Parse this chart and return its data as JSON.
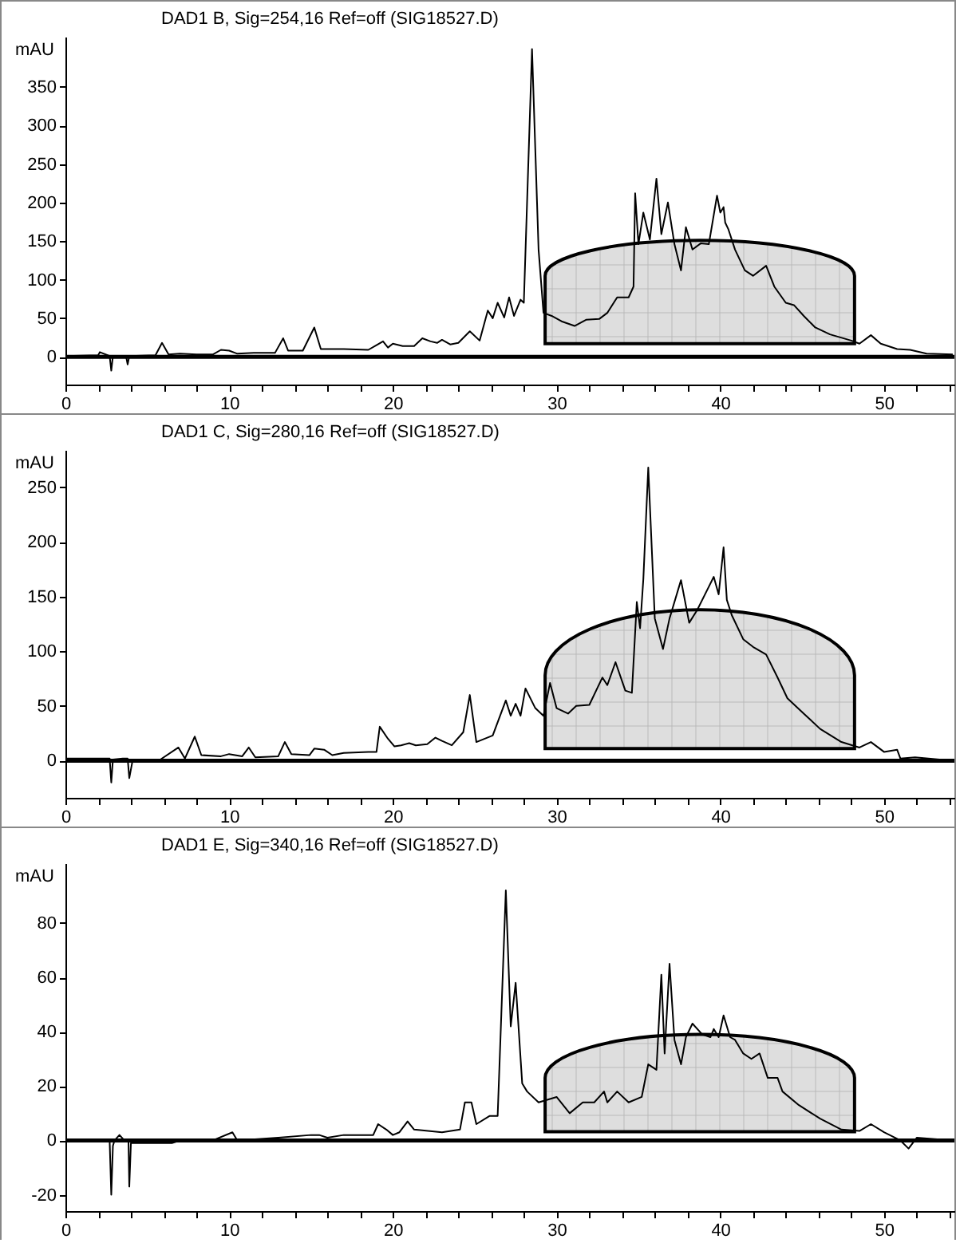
{
  "chart_data": [
    {
      "type": "line",
      "title": "DAD1 B, Sig=254,16 Ref=off (SIG18527.D)",
      "ylabel": "mAU",
      "color": "#000000",
      "line_style": "solid",
      "marker": "none",
      "grid": false,
      "x": [
        0,
        2,
        2.1,
        2.7,
        2.8,
        2.9,
        3.7,
        3.8,
        3.9,
        5.5,
        5.9,
        6.3,
        7,
        8,
        9,
        9.5,
        10,
        10.5,
        11.5,
        12.8,
        13.3,
        13.6,
        14.5,
        15.2,
        15.6,
        17,
        18.5,
        19,
        19.4,
        19.7,
        20,
        20.6,
        21.3,
        21.8,
        22.3,
        22.7,
        23,
        23.5,
        24,
        24.7,
        25.3,
        25.8,
        26.1,
        26.4,
        26.8,
        27.1,
        27.4,
        27.8,
        28.0,
        28.5,
        28.9,
        29.2,
        29.7,
        30.3,
        31.1,
        31.8,
        32.6,
        33.1,
        33.7,
        34.4,
        34.7,
        34.8,
        35.0,
        35.3,
        35.7,
        36.1,
        36.4,
        36.8,
        37.2,
        37.6,
        37.9,
        38.3,
        38.8,
        39.3,
        39.8,
        40.0,
        40.2,
        40.3,
        40.5,
        40.9,
        41.5,
        42.0,
        42.8,
        43.3,
        44.0,
        44.5,
        45.1,
        45.8,
        46.7,
        48.0,
        48.5,
        49.2,
        49.8,
        50.8,
        51.6,
        52.6,
        54.2
      ],
      "values": [
        1,
        2,
        6,
        1,
        -18,
        1,
        1,
        -10,
        1,
        2,
        18,
        3,
        4,
        3,
        3,
        9,
        8,
        4,
        5,
        5,
        24,
        8,
        8,
        38,
        10,
        10,
        9,
        15,
        20,
        12,
        17,
        14,
        14,
        24,
        20,
        18,
        22,
        16,
        18,
        33,
        21,
        60,
        50,
        70,
        51,
        77,
        53,
        74,
        70,
        399,
        139,
        57,
        53,
        46,
        40,
        48,
        49,
        57,
        77,
        77,
        91,
        212,
        146,
        187,
        152,
        231,
        159,
        200,
        146,
        112,
        168,
        139,
        147,
        146,
        209,
        187,
        194,
        174,
        165,
        139,
        112,
        105,
        118,
        91,
        70,
        67,
        53,
        38,
        29,
        21,
        17,
        28,
        17,
        10,
        9,
        4,
        3
      ],
      "xlim": [
        0,
        54.3
      ],
      "xticks": [
        0,
        {
          "value": 2,
          "label": null
        },
        {
          "value": 4,
          "label": null
        },
        {
          "value": 6,
          "label": null
        },
        {
          "value": 8,
          "label": null
        },
        10,
        {
          "value": 12,
          "label": null
        },
        {
          "value": 14,
          "label": null
        },
        {
          "value": 16,
          "label": null
        },
        {
          "value": 18,
          "label": null
        },
        20,
        {
          "value": 22,
          "label": null
        },
        {
          "value": 24,
          "label": null
        },
        {
          "value": 26,
          "label": null
        },
        {
          "value": 28,
          "label": null
        },
        30,
        {
          "value": 32,
          "label": null
        },
        {
          "value": 34,
          "label": null
        },
        {
          "value": 36,
          "label": null
        },
        {
          "value": 38,
          "label": null
        },
        40,
        {
          "value": 42,
          "label": null
        },
        {
          "value": 44,
          "label": null
        },
        {
          "value": 46,
          "label": null
        },
        {
          "value": 48,
          "label": null
        },
        50,
        {
          "value": 52,
          "label": null
        },
        {
          "value": 54,
          "label": null
        }
      ],
      "ylim": [
        -36,
        415
      ],
      "yticks": [
        0,
        50,
        100,
        150,
        200,
        250,
        300,
        350
      ],
      "ref_lines": [
        {
          "axis": "y",
          "value": 0,
          "label": null,
          "color": "#000000"
        }
      ]
    },
    {
      "type": "line",
      "title": "DAD1 C, Sig=280,16 Ref=off (SIG18527.D)",
      "ylabel": "mAU",
      "color": "#000000",
      "line_style": "solid",
      "marker": "none",
      "grid": false,
      "x": [
        0,
        2.7,
        2.8,
        2.9,
        3.5,
        3.8,
        3.9,
        4.1,
        5.8,
        6.9,
        7.3,
        7.9,
        8.3,
        9.5,
        10,
        10.8,
        11.2,
        11.6,
        13,
        13.4,
        13.8,
        14.9,
        15.2,
        15.8,
        16.3,
        17,
        18.5,
        19,
        19.2,
        19.7,
        20.1,
        20.5,
        21,
        21.4,
        22.1,
        22.6,
        23,
        23.6,
        24.3,
        24.7,
        25.1,
        26.1,
        26.9,
        27.2,
        27.5,
        27.8,
        28.1,
        28.7,
        29.2,
        29.6,
        30.0,
        30.7,
        31.2,
        32.0,
        32.8,
        33.1,
        33.6,
        34.2,
        34.6,
        34.9,
        35.1,
        35.3,
        35.6,
        36.0,
        36.5,
        36.9,
        37.6,
        38.1,
        38.6,
        39.3,
        39.6,
        39.9,
        40.2,
        40.4,
        40.7,
        41.4,
        42.0,
        42.8,
        43.5,
        44.1,
        45.1,
        46.1,
        47.4,
        48.5,
        49.2,
        50.0,
        50.8,
        51.0,
        51.9,
        54.2
      ],
      "values": [
        2,
        2,
        -20,
        1,
        2,
        2,
        -16,
        0,
        1,
        12,
        2,
        22,
        5,
        4,
        6,
        4,
        12,
        3,
        4,
        17,
        6,
        5,
        11,
        10,
        5,
        7,
        8,
        8,
        31,
        20,
        13,
        14,
        16,
        14,
        15,
        21,
        18,
        14,
        26,
        60,
        17,
        23,
        55,
        41,
        52,
        41,
        66,
        48,
        41,
        71,
        48,
        43,
        50,
        51,
        76,
        69,
        90,
        64,
        62,
        145,
        121,
        166,
        268,
        130,
        102,
        130,
        165,
        126,
        138,
        159,
        168,
        152,
        195,
        147,
        133,
        111,
        104,
        97,
        76,
        57,
        43,
        29,
        17,
        12,
        17,
        8,
        10,
        2,
        3,
        0
      ],
      "xlim": [
        0,
        54.3
      ],
      "xticks": [
        0,
        {
          "value": 2,
          "label": null
        },
        {
          "value": 4,
          "label": null
        },
        {
          "value": 6,
          "label": null
        },
        {
          "value": 8,
          "label": null
        },
        10,
        {
          "value": 12,
          "label": null
        },
        {
          "value": 14,
          "label": null
        },
        {
          "value": 16,
          "label": null
        },
        {
          "value": 18,
          "label": null
        },
        20,
        {
          "value": 22,
          "label": null
        },
        {
          "value": 24,
          "label": null
        },
        {
          "value": 26,
          "label": null
        },
        {
          "value": 28,
          "label": null
        },
        30,
        {
          "value": 32,
          "label": null
        },
        {
          "value": 34,
          "label": null
        },
        {
          "value": 36,
          "label": null
        },
        {
          "value": 38,
          "label": null
        },
        40,
        {
          "value": 42,
          "label": null
        },
        {
          "value": 44,
          "label": null
        },
        {
          "value": 46,
          "label": null
        },
        {
          "value": 48,
          "label": null
        },
        50,
        {
          "value": 52,
          "label": null
        },
        {
          "value": 54,
          "label": null
        }
      ],
      "ylim": [
        -34,
        284
      ],
      "yticks": [
        0,
        50,
        100,
        150,
        200,
        250
      ],
      "ref_lines": [
        {
          "axis": "y",
          "value": 0,
          "label": null,
          "color": "#000000"
        }
      ]
    },
    {
      "type": "line",
      "title": "DAD1 E, Sig=340,16 Ref=off (SIG18527.D)",
      "ylabel": "mAU",
      "color": "#000000",
      "line_style": "solid",
      "marker": "none",
      "grid": false,
      "x": [
        0,
        2.7,
        2.8,
        2.9,
        3.0,
        3.3,
        3.6,
        3.85,
        3.9,
        4.0,
        6.5,
        7,
        9,
        10.2,
        10.5,
        13,
        15,
        15.5,
        16,
        17,
        18.8,
        19.1,
        19.6,
        20,
        20.4,
        20.9,
        21.3,
        23,
        24.1,
        24.4,
        24.8,
        25.1,
        25.9,
        26.4,
        26.9,
        27.2,
        27.5,
        27.9,
        28.2,
        28.9,
        30.0,
        30.8,
        31.6,
        32.3,
        32.9,
        33.1,
        33.7,
        34.4,
        35.2,
        35.6,
        36.1,
        36.4,
        36.6,
        36.9,
        37.2,
        37.6,
        37.9,
        38.3,
        38.9,
        39.4,
        39.6,
        39.9,
        40.2,
        40.6,
        40.9,
        41.4,
        41.9,
        42.4,
        42.9,
        43.5,
        43.8,
        44.8,
        46.1,
        47.4,
        48.5,
        49.2,
        50.0,
        51.0,
        51.5,
        52.0,
        54.2
      ],
      "values": [
        0.3,
        0,
        -20,
        -2,
        0,
        2,
        0,
        0,
        -17,
        -1,
        -1,
        0,
        0,
        3,
        0,
        1,
        2,
        2,
        1,
        2,
        2,
        6,
        4,
        2,
        3,
        7,
        4,
        3,
        4,
        14,
        14,
        6,
        9,
        9,
        92,
        42,
        58,
        21,
        18,
        14,
        16,
        10,
        14,
        14,
        18,
        14,
        18,
        14,
        16,
        28,
        26,
        61,
        32,
        65,
        37,
        28,
        38,
        43,
        39,
        38,
        41,
        38,
        46,
        38,
        37,
        32,
        30,
        32,
        23,
        23,
        18,
        13,
        8,
        4,
        3.5,
        6,
        3,
        0,
        -3,
        1,
        0
      ],
      "xlim": [
        0,
        54.3
      ],
      "xticks": [
        0,
        {
          "value": 2,
          "label": null
        },
        {
          "value": 4,
          "label": null
        },
        {
          "value": 6,
          "label": null
        },
        {
          "value": 8,
          "label": null
        },
        10,
        {
          "value": 12,
          "label": null
        },
        {
          "value": 14,
          "label": null
        },
        {
          "value": 16,
          "label": null
        },
        {
          "value": 18,
          "label": null
        },
        20,
        {
          "value": 22,
          "label": null
        },
        {
          "value": 24,
          "label": null
        },
        {
          "value": 26,
          "label": null
        },
        {
          "value": 28,
          "label": null
        },
        30,
        {
          "value": 32,
          "label": null
        },
        {
          "value": 34,
          "label": null
        },
        {
          "value": 36,
          "label": null
        },
        {
          "value": 38,
          "label": null
        },
        40,
        {
          "value": 42,
          "label": null
        },
        {
          "value": 44,
          "label": null
        },
        {
          "value": 46,
          "label": null
        },
        {
          "value": 48,
          "label": null
        },
        50,
        {
          "value": 52,
          "label": null
        },
        {
          "value": 54,
          "label": null
        }
      ],
      "ylim": [
        -26,
        102
      ],
      "yticks": [
        -20,
        0,
        20,
        40,
        60,
        80
      ],
      "ref_lines": [
        {
          "axis": "y",
          "value": 0,
          "label": null,
          "color": "#000000"
        }
      ]
    }
  ]
}
